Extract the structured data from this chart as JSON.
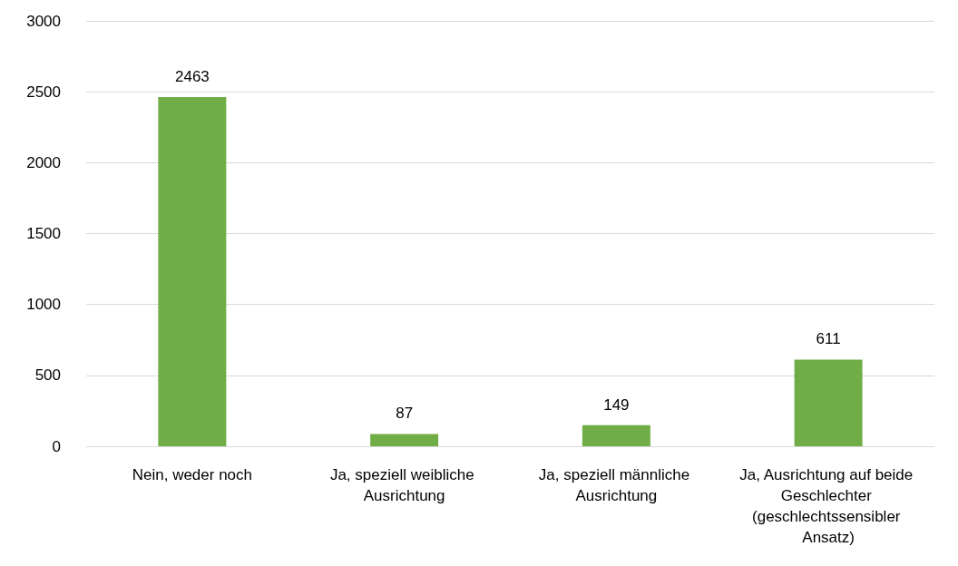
{
  "chart_data": {
    "type": "bar",
    "categories": [
      "Nein, weder noch",
      "Ja, speziell weibliche Ausrichtung",
      "Ja, speziell männliche Ausrichtung",
      "Ja, Ausrichtung auf beide Geschlechter (geschlechtssensibler Ansatz)"
    ],
    "values": [
      2463,
      87,
      149,
      611
    ],
    "color": "#70ad47",
    "ylim": [
      0,
      3000
    ],
    "yticks": [
      0,
      500,
      1000,
      1500,
      2000,
      2500,
      3000
    ],
    "grid": "y",
    "data_labels": true
  }
}
